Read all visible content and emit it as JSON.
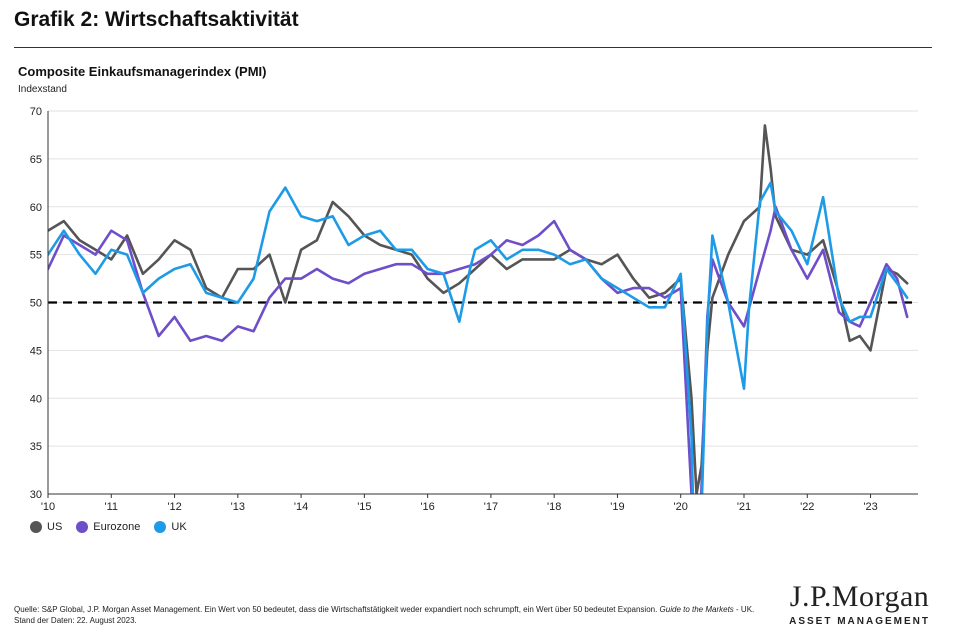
{
  "page": {
    "title": "Grafik 2: Wirtschaftsaktivität",
    "footnote_prefix": "Quelle: S&P Global, J.P. Morgan Asset Management. Ein Wert von 50 bedeutet, dass die Wirtschaftstätigkeit weder expandiert noch schrumpft, ein Wert über 50 bedeutet Expansion. ",
    "footnote_guide": "Guide to the Markets",
    "footnote_suffix": " - UK. Stand der Daten: 22. August 2023.",
    "logo_main": "J.P.Morgan",
    "logo_sub": "ASSET MANAGEMENT"
  },
  "chart_data": {
    "type": "line",
    "title": "Composite Einkaufsmanagerindex (PMI)",
    "ylabel": "Indexstand",
    "xlabel": "",
    "ylim": [
      30,
      70
    ],
    "yticks": [
      30,
      35,
      40,
      45,
      50,
      55,
      60,
      65,
      70
    ],
    "xlim": [
      2010.0,
      2023.75
    ],
    "xticks": [
      {
        "value": 2010,
        "label": "'10"
      },
      {
        "value": 2011,
        "label": "'11"
      },
      {
        "value": 2012,
        "label": "'12"
      },
      {
        "value": 2013,
        "label": "'13"
      },
      {
        "value": 2014,
        "label": "'14"
      },
      {
        "value": 2015,
        "label": "'15"
      },
      {
        "value": 2016,
        "label": "'16"
      },
      {
        "value": 2017,
        "label": "'17"
      },
      {
        "value": 2018,
        "label": "'18"
      },
      {
        "value": 2019,
        "label": "'19"
      },
      {
        "value": 2020,
        "label": "'20"
      },
      {
        "value": 2021,
        "label": "'21"
      },
      {
        "value": 2022,
        "label": "'22"
      },
      {
        "value": 2023,
        "label": "'23"
      }
    ],
    "grid": true,
    "legend_position": "bottom-left",
    "reference_line": {
      "value": 50,
      "style": "dashed",
      "color": "#000000"
    },
    "series": [
      {
        "name": "US",
        "color": "#555555",
        "x": [
          2010.0,
          2010.25,
          2010.5,
          2010.75,
          2011.0,
          2011.25,
          2011.5,
          2011.75,
          2012.0,
          2012.25,
          2012.5,
          2012.75,
          2013.0,
          2013.25,
          2013.5,
          2013.75,
          2014.0,
          2014.25,
          2014.5,
          2014.75,
          2015.0,
          2015.25,
          2015.5,
          2015.75,
          2016.0,
          2016.25,
          2016.5,
          2016.75,
          2017.0,
          2017.25,
          2017.5,
          2017.75,
          2018.0,
          2018.25,
          2018.5,
          2018.75,
          2019.0,
          2019.25,
          2019.5,
          2019.75,
          2020.0,
          2020.17,
          2020.25,
          2020.33,
          2020.42,
          2020.5,
          2020.75,
          2021.0,
          2021.25,
          2021.33,
          2021.42,
          2021.5,
          2021.75,
          2022.0,
          2022.25,
          2022.5,
          2022.67,
          2022.83,
          2023.0,
          2023.25,
          2023.42,
          2023.58
        ],
        "values": [
          57.5,
          58.5,
          56.5,
          55.5,
          54.5,
          57.0,
          53.0,
          54.5,
          56.5,
          55.5,
          51.5,
          50.5,
          53.5,
          53.5,
          55.0,
          50.0,
          55.5,
          56.5,
          60.5,
          59.0,
          57.0,
          56.0,
          55.5,
          55.0,
          52.5,
          51.0,
          52.0,
          53.5,
          55.0,
          53.5,
          54.5,
          54.5,
          54.5,
          55.5,
          54.5,
          54.0,
          55.0,
          52.5,
          50.5,
          51.0,
          52.5,
          40.0,
          30.0,
          33.0,
          45.0,
          50.5,
          55.0,
          58.5,
          60.0,
          68.5,
          64.0,
          59.0,
          55.5,
          55.0,
          56.5,
          51.0,
          46.0,
          46.5,
          45.0,
          53.5,
          53.0,
          52.0
        ]
      },
      {
        "name": "Eurozone",
        "color": "#6E4FC9",
        "x": [
          2010.0,
          2010.25,
          2010.5,
          2010.75,
          2011.0,
          2011.25,
          2011.5,
          2011.75,
          2012.0,
          2012.25,
          2012.5,
          2012.75,
          2013.0,
          2013.25,
          2013.5,
          2013.75,
          2014.0,
          2014.25,
          2014.5,
          2014.75,
          2015.0,
          2015.25,
          2015.5,
          2015.75,
          2016.0,
          2016.25,
          2016.5,
          2016.75,
          2017.0,
          2017.25,
          2017.5,
          2017.75,
          2018.0,
          2018.25,
          2018.5,
          2018.75,
          2019.0,
          2019.25,
          2019.5,
          2019.75,
          2020.0,
          2020.17,
          2020.25,
          2020.33,
          2020.42,
          2020.5,
          2020.75,
          2021.0,
          2021.25,
          2021.42,
          2021.5,
          2021.75,
          2022.0,
          2022.25,
          2022.5,
          2022.67,
          2022.83,
          2023.0,
          2023.25,
          2023.42,
          2023.58
        ],
        "values": [
          53.5,
          57.0,
          56.0,
          55.0,
          57.5,
          56.5,
          51.0,
          46.5,
          48.5,
          46.0,
          46.5,
          46.0,
          47.5,
          47.0,
          50.5,
          52.5,
          52.5,
          53.5,
          52.5,
          52.0,
          53.0,
          53.5,
          54.0,
          54.0,
          53.0,
          53.0,
          53.5,
          54.0,
          55.0,
          56.5,
          56.0,
          57.0,
          58.5,
          55.5,
          54.5,
          52.5,
          51.0,
          51.5,
          51.5,
          50.5,
          51.5,
          30.0,
          13.5,
          31.0,
          48.5,
          54.5,
          50.0,
          47.5,
          53.5,
          57.5,
          60.0,
          55.5,
          52.5,
          55.5,
          49.0,
          48.0,
          47.5,
          50.0,
          54.0,
          52.5,
          48.5
        ]
      },
      {
        "name": "UK",
        "color": "#1E9BE6",
        "x": [
          2010.0,
          2010.25,
          2010.5,
          2010.75,
          2011.0,
          2011.25,
          2011.5,
          2011.75,
          2012.0,
          2012.25,
          2012.5,
          2012.75,
          2013.0,
          2013.25,
          2013.5,
          2013.75,
          2014.0,
          2014.25,
          2014.5,
          2014.75,
          2015.0,
          2015.25,
          2015.5,
          2015.75,
          2016.0,
          2016.25,
          2016.5,
          2016.67,
          2016.75,
          2017.0,
          2017.25,
          2017.5,
          2017.75,
          2018.0,
          2018.25,
          2018.5,
          2018.75,
          2019.0,
          2019.25,
          2019.5,
          2019.75,
          2020.0,
          2020.17,
          2020.25,
          2020.33,
          2020.42,
          2020.5,
          2020.75,
          2021.0,
          2021.08,
          2021.25,
          2021.42,
          2021.5,
          2021.75,
          2022.0,
          2022.25,
          2022.5,
          2022.67,
          2022.83,
          2023.0,
          2023.25,
          2023.42,
          2023.58
        ],
        "values": [
          55.0,
          57.5,
          55.0,
          53.0,
          55.5,
          55.0,
          51.0,
          52.5,
          53.5,
          54.0,
          51.0,
          50.5,
          50.0,
          52.5,
          59.5,
          62.0,
          59.0,
          58.5,
          59.0,
          56.0,
          57.0,
          57.5,
          55.5,
          55.5,
          53.5,
          53.0,
          48.0,
          53.5,
          55.5,
          56.5,
          54.5,
          55.5,
          55.5,
          55.0,
          54.0,
          54.5,
          52.5,
          51.5,
          50.5,
          49.5,
          49.5,
          53.0,
          36.0,
          13.5,
          28.5,
          47.5,
          57.0,
          50.0,
          41.0,
          49.5,
          60.5,
          62.5,
          59.5,
          57.5,
          54.0,
          61.0,
          50.5,
          48.0,
          48.5,
          48.5,
          53.5,
          52.0,
          50.5
        ]
      }
    ]
  }
}
